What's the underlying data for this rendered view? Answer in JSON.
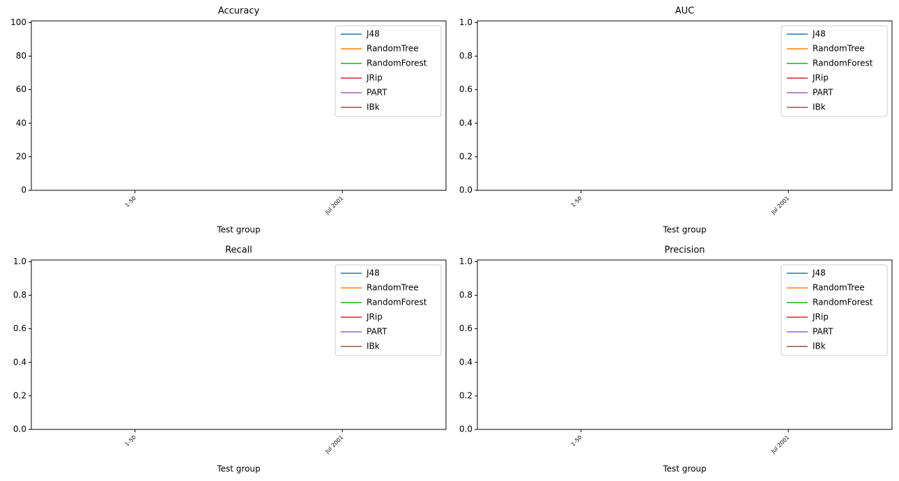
{
  "chart_data": [
    {
      "type": "line",
      "title": "Accuracy",
      "xlabel": "Test group",
      "categories": [
        "1-50",
        "Jul 2001"
      ],
      "series": [
        {
          "name": "J48",
          "color": "#1f77b4",
          "values": [
            null,
            null
          ]
        },
        {
          "name": "RandomTree",
          "color": "#ff7f0e",
          "values": [
            null,
            null
          ]
        },
        {
          "name": "RandomForest",
          "color": "#2ca02c",
          "values": [
            null,
            null
          ]
        },
        {
          "name": "JRip",
          "color": "#d62728",
          "values": [
            null,
            null
          ]
        },
        {
          "name": "PART",
          "color": "#9467bd",
          "values": [
            null,
            null
          ]
        },
        {
          "name": "IBk",
          "color": "#8c564b",
          "values": [
            null,
            null
          ]
        }
      ],
      "ylim": [
        0,
        101
      ],
      "yticks": [
        0,
        20,
        40,
        60,
        80,
        100
      ],
      "legend": "upper right"
    },
    {
      "type": "line",
      "title": "AUC",
      "xlabel": "Test group",
      "categories": [
        "1-50",
        "Jul 2001"
      ],
      "series": [
        {
          "name": "J48",
          "color": "#1f77b4",
          "values": [
            null,
            null
          ]
        },
        {
          "name": "RandomTree",
          "color": "#ff7f0e",
          "values": [
            null,
            null
          ]
        },
        {
          "name": "RandomForest",
          "color": "#2ca02c",
          "values": [
            null,
            null
          ]
        },
        {
          "name": "JRip",
          "color": "#d62728",
          "values": [
            null,
            null
          ]
        },
        {
          "name": "PART",
          "color": "#9467bd",
          "values": [
            null,
            null
          ]
        },
        {
          "name": "IBk",
          "color": "#8c564b",
          "values": [
            null,
            null
          ]
        }
      ],
      "ylim": [
        0,
        1.01
      ],
      "yticks": [
        {
          "value": 0,
          "label": "0.0"
        },
        0.2,
        0.4,
        0.6,
        0.8,
        {
          "value": 1,
          "label": "1.0"
        }
      ],
      "legend": "upper right"
    },
    {
      "type": "line",
      "title": "Recall",
      "xlabel": "Test group",
      "categories": [
        "1-50",
        "Jul 2001"
      ],
      "series": [
        {
          "name": "J48",
          "color": "#1f77b4",
          "values": [
            null,
            null
          ]
        },
        {
          "name": "RandomTree",
          "color": "#ff7f0e",
          "values": [
            null,
            null
          ]
        },
        {
          "name": "RandomForest",
          "color": "#2ca02c",
          "values": [
            null,
            null
          ]
        },
        {
          "name": "JRip",
          "color": "#d62728",
          "values": [
            null,
            null
          ]
        },
        {
          "name": "PART",
          "color": "#9467bd",
          "values": [
            null,
            null
          ]
        },
        {
          "name": "IBk",
          "color": "#8c564b",
          "values": [
            null,
            null
          ]
        }
      ],
      "ylim": [
        0,
        1.01
      ],
      "yticks": [
        {
          "value": 0,
          "label": "0.0"
        },
        0.2,
        0.4,
        0.6,
        0.8,
        {
          "value": 1,
          "label": "1.0"
        }
      ],
      "legend": "upper right"
    },
    {
      "type": "line",
      "title": "Precision",
      "xlabel": "Test group",
      "categories": [
        "1-50",
        "Jul 2001"
      ],
      "series": [
        {
          "name": "J48",
          "color": "#1f77b4",
          "values": [
            null,
            null
          ]
        },
        {
          "name": "RandomTree",
          "color": "#ff7f0e",
          "values": [
            null,
            null
          ]
        },
        {
          "name": "RandomForest",
          "color": "#2ca02c",
          "values": [
            null,
            null
          ]
        },
        {
          "name": "JRip",
          "color": "#d62728",
          "values": [
            null,
            null
          ]
        },
        {
          "name": "PART",
          "color": "#9467bd",
          "values": [
            null,
            null
          ]
        },
        {
          "name": "IBk",
          "color": "#8c564b",
          "values": [
            null,
            null
          ]
        }
      ],
      "ylim": [
        0,
        1.01
      ],
      "yticks": [
        {
          "value": 0,
          "label": "0.0"
        },
        0.2,
        0.4,
        0.6,
        0.8,
        {
          "value": 1,
          "label": "1.0"
        }
      ],
      "legend": "upper right"
    }
  ]
}
